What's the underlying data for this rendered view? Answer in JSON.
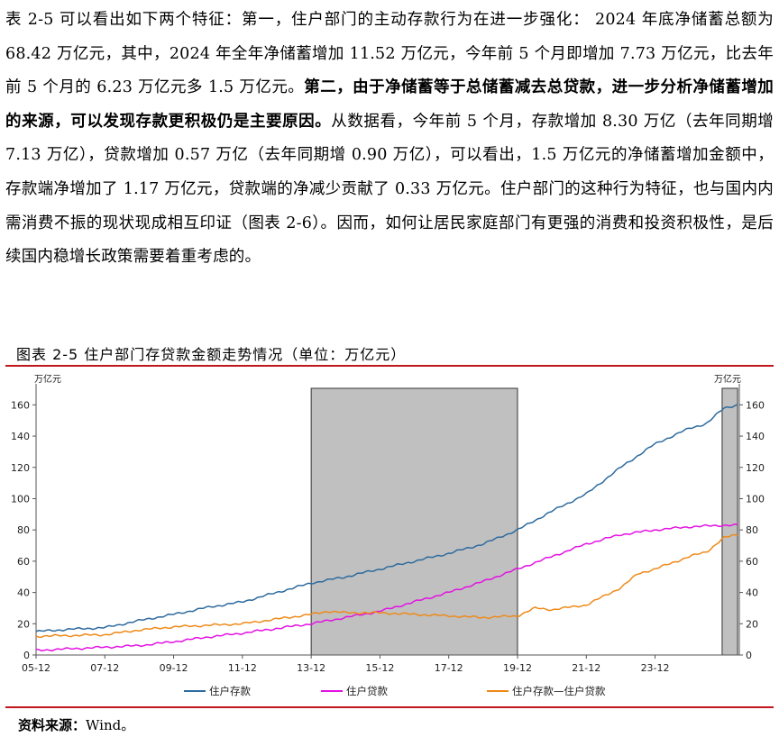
{
  "paragraph": {
    "part1": "表 2-5 可以看出如下两个特征：第一，住户部门的主动存款行为在进一步强化： 2024 年底净储蓄总额为 68.42 万亿元，其中，2024 年全年净储蓄增加 11.52 万亿元，今年前 5 个月即增加 7.73 万亿元，比去年前 5 个月的 6.23 万亿元多 1.5 万亿元。",
    "bold": "第二，由于净储蓄等于总储蓄减去总贷款，进一步分析净储蓄增加的来源，可以发现存款更积极仍是主要原因。",
    "part2": "从数据看，今年前 5 个月，存款增加 8.30 万亿（去年同期增 7.13 万亿），贷款增加 0.57 万亿（去年同期增 0.90 万亿），可以看出，1.5 万亿元的净储蓄增加金额中，存款端净增加了 1.17 万亿元，贷款端的净减少贡献了 0.33 万亿元。住户部门的这种行为特征，也与国内内需消费不振的现状现成相互印证（图表 2-6）。因而，如何让居民家庭部门有更强的消费和投资积极性，是后续国内稳增长政策需要着重考虑的。"
  },
  "figure_title": "图表 2-5   住户部门存贷款金额走势情况（单位：万亿元）",
  "source": {
    "label": "资料来源：",
    "value": "Wind。"
  },
  "chart_data": {
    "type": "line",
    "ylabel_left": "万亿元",
    "ylabel_right": "万亿元",
    "ylim": [
      0,
      170
    ],
    "yticks": [
      0,
      20,
      40,
      60,
      80,
      100,
      120,
      140,
      160
    ],
    "xlim": [
      2005.0,
      2025.45
    ],
    "xticks": [
      {
        "label": "05-12",
        "x": 2005.0
      },
      {
        "label": "07-12",
        "x": 2007.0
      },
      {
        "label": "09-12",
        "x": 2009.0
      },
      {
        "label": "11-12",
        "x": 2011.0
      },
      {
        "label": "13-12",
        "x": 2013.0
      },
      {
        "label": "15-12",
        "x": 2015.0
      },
      {
        "label": "17-12",
        "x": 2017.0
      },
      {
        "label": "19-12",
        "x": 2019.0
      },
      {
        "label": "21-12",
        "x": 2021.0
      },
      {
        "label": "23-12",
        "x": 2023.0
      }
    ],
    "shaded_ranges": [
      [
        2013.0,
        2019.0
      ],
      [
        2024.95,
        2025.4
      ]
    ],
    "legend_position": "bottom",
    "series": [
      {
        "name": "住户存款",
        "color": "#2e6b9e",
        "x": [
          2005.0,
          2006.0,
          2007.0,
          2008.0,
          2009.0,
          2010.0,
          2011.0,
          2012.0,
          2013.0,
          2014.0,
          2015.0,
          2016.0,
          2017.0,
          2018.0,
          2019.0,
          2020.0,
          2021.0,
          2022.0,
          2023.0,
          2024.0,
          2024.5,
          2025.0,
          2025.4
        ],
        "y": [
          15,
          16.5,
          17.5,
          22,
          26,
          30.5,
          34,
          40,
          46,
          50,
          55,
          60,
          65,
          71,
          80,
          92,
          103,
          120,
          135,
          145,
          148,
          158,
          160
        ]
      },
      {
        "name": "住户贷款",
        "color": "#e312e3",
        "x": [
          2005.0,
          2006.0,
          2007.0,
          2008.0,
          2009.0,
          2010.0,
          2011.0,
          2012.0,
          2013.0,
          2014.0,
          2015.0,
          2016.0,
          2017.0,
          2018.0,
          2019.0,
          2020.0,
          2021.0,
          2022.0,
          2023.0,
          2024.0,
          2025.0,
          2025.4
        ],
        "y": [
          3,
          4,
          5,
          6,
          8.5,
          11.5,
          14,
          17,
          20,
          24,
          28,
          34,
          40,
          47,
          55,
          63,
          71,
          77,
          80,
          82,
          83,
          83
        ]
      },
      {
        "name": "住户存款—住户贷款",
        "color": "#ee8a1a",
        "x": [
          2005.0,
          2006.0,
          2007.0,
          2008.0,
          2009.0,
          2010.0,
          2011.0,
          2012.0,
          2013.0,
          2013.5,
          2014.0,
          2015.0,
          2016.0,
          2017.0,
          2018.0,
          2019.0,
          2019.5,
          2020.0,
          2021.0,
          2022.0,
          2022.5,
          2023.0,
          2024.0,
          2024.5,
          2025.0,
          2025.4
        ],
        "y": [
          12,
          12.5,
          13,
          16,
          18,
          19,
          20,
          23,
          26,
          28,
          27,
          27,
          26,
          25,
          24,
          25,
          30,
          29,
          32,
          43,
          52,
          55,
          63,
          66,
          75,
          77
        ]
      }
    ]
  }
}
